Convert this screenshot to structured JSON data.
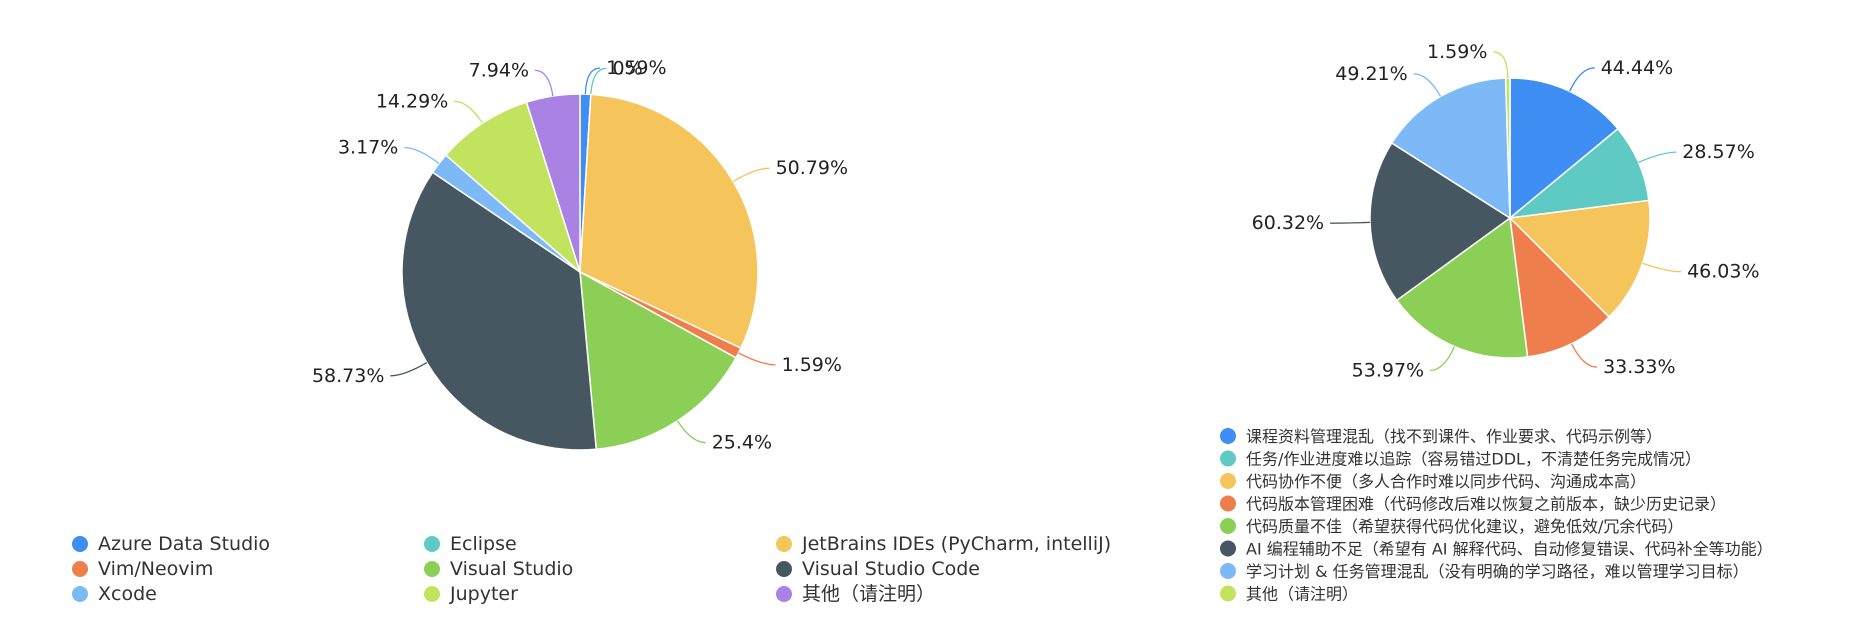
{
  "chart_data": [
    {
      "type": "pie",
      "title": "",
      "legend_position": "bottom",
      "labels": [
        "Azure Data Studio",
        "Eclipse",
        "JetBrains IDEs (PyCharm, intelliJ)",
        "Vim/Neovim",
        "Visual Studio",
        "Visual Studio Code",
        "Xcode",
        "Jupyter",
        "其他（请注明）"
      ],
      "values": [
        1.59,
        0,
        50.79,
        1.59,
        25.4,
        58.73,
        3.17,
        14.29,
        7.94
      ],
      "value_labels": [
        "1.59%",
        "0%",
        "50.79%",
        "1.59%",
        "25.4%",
        "58.73%",
        "3.17%",
        "14.29%",
        "7.94%"
      ],
      "colors": [
        "#3f8ef3",
        "#5fc9c4",
        "#f5c45a",
        "#ee7f4c",
        "#8ccf57",
        "#475762",
        "#7db9f6",
        "#c2e35e",
        "#a982e4"
      ]
    },
    {
      "type": "pie",
      "title": "",
      "legend_position": "bottom",
      "labels": [
        "课程资料管理混乱（找不到课件、作业要求、代码示例等）",
        "任务/作业进度难以追踪（容易错过DDL，不清楚任务完成情况）",
        "代码协作不便（多人合作时难以同步代码、沟通成本高）",
        "代码版本管理困难（代码修改后难以恢复之前版本，缺少历史记录）",
        "代码质量不佳（希望获得代码优化建议，避免低效/冗余代码）",
        "AI 编程辅助不足（希望有 AI 解释代码、自动修复错误、代码补全等功能）",
        "学习计划 & 任务管理混乱（没有明确的学习路径，难以管理学习目标）",
        "其他（请注明）"
      ],
      "values": [
        44.44,
        28.57,
        46.03,
        33.33,
        53.97,
        60.32,
        49.21,
        1.59
      ],
      "value_labels": [
        "44.44%",
        "28.57%",
        "46.03%",
        "33.33%",
        "53.97%",
        "60.32%",
        "49.21%",
        "1.59%"
      ],
      "colors": [
        "#3f8ef3",
        "#5fc9c4",
        "#f5c45a",
        "#ee7f4c",
        "#8ccf57",
        "#475762",
        "#7db9f6",
        "#c2e35e"
      ]
    }
  ]
}
